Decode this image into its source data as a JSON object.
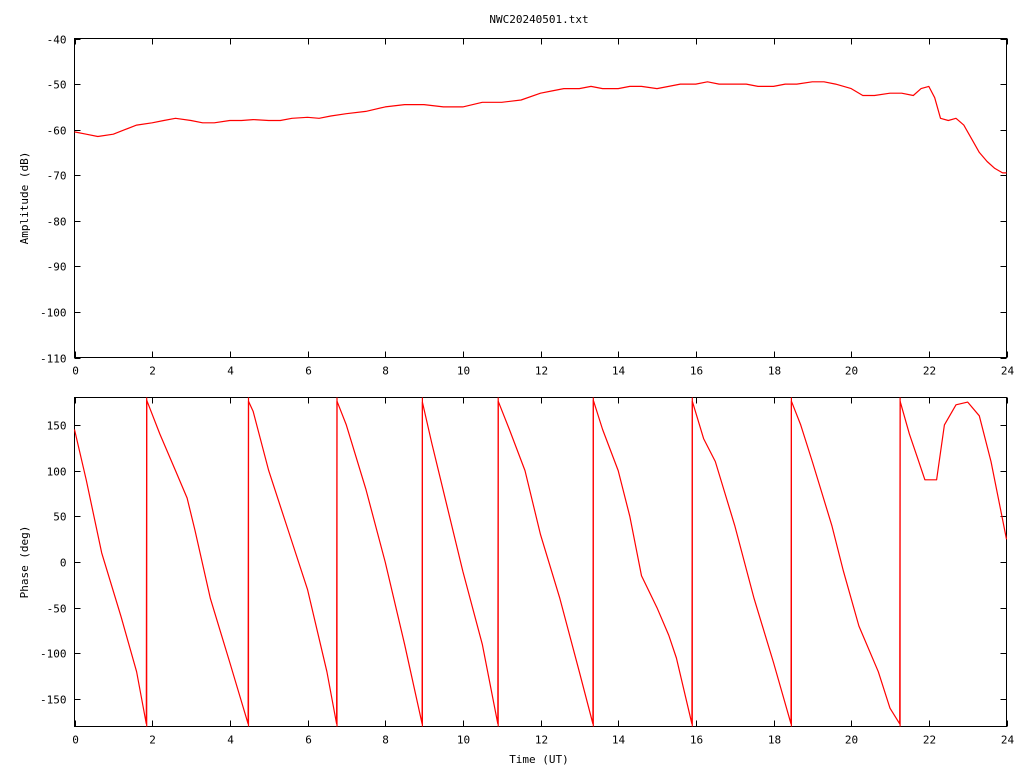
{
  "chart_data": [
    {
      "type": "line",
      "title": "NWC20240501.txt",
      "xlabel": "",
      "ylabel": "Amplitude (dB)",
      "xlim": [
        0,
        24
      ],
      "ylim": [
        -110,
        -40
      ],
      "xticks": [
        "0",
        "2",
        "4",
        "6",
        "8",
        "10",
        "12",
        "14",
        "16",
        "18",
        "20",
        "22",
        "24"
      ],
      "yticks": [
        "-110",
        "-100",
        "-90",
        "-80",
        "-70",
        "-60",
        "-50",
        "-40"
      ],
      "xtick_values": [
        0,
        2,
        4,
        6,
        8,
        10,
        12,
        14,
        16,
        18,
        20,
        22,
        24
      ],
      "ytick_values": [
        -110,
        -100,
        -90,
        -80,
        -70,
        -60,
        -50,
        -40
      ],
      "grid": false,
      "color": "#ff0000",
      "series": [
        {
          "x": [
            0,
            0.3,
            0.6,
            1.0,
            1.3,
            1.6,
            2.0,
            2.3,
            2.6,
            3.0,
            3.3,
            3.6,
            4.0,
            4.3,
            4.6,
            5.0,
            5.3,
            5.6,
            6.0,
            6.3,
            6.6,
            7.0,
            7.5,
            8.0,
            8.5,
            9.0,
            9.5,
            10.0,
            10.5,
            11.0,
            11.5,
            12.0,
            12.3,
            12.6,
            13.0,
            13.3,
            13.6,
            14.0,
            14.3,
            14.6,
            15.0,
            15.3,
            15.6,
            16.0,
            16.3,
            16.6,
            17.0,
            17.3,
            17.6,
            18.0,
            18.3,
            18.6,
            19.0,
            19.3,
            19.6,
            20.0,
            20.3,
            20.6,
            21.0,
            21.3,
            21.6,
            21.8,
            22.0,
            22.15,
            22.3,
            22.5,
            22.7,
            22.9,
            23.1,
            23.3,
            23.5,
            23.7,
            23.9,
            24.0
          ],
          "y": [
            -60.5,
            -61.0,
            -61.5,
            -61.0,
            -60.0,
            -59.0,
            -58.5,
            -58.0,
            -57.5,
            -58.0,
            -58.5,
            -58.5,
            -58.0,
            -58.0,
            -57.8,
            -58.0,
            -58.0,
            -57.5,
            -57.3,
            -57.5,
            -57.0,
            -56.5,
            -56.0,
            -55.0,
            -54.5,
            -54.5,
            -55.0,
            -55.0,
            -54.0,
            -54.0,
            -53.5,
            -52.0,
            -51.5,
            -51.0,
            -51.0,
            -50.5,
            -51.0,
            -51.0,
            -50.5,
            -50.5,
            -51.0,
            -50.5,
            -50.0,
            -50.0,
            -49.5,
            -50.0,
            -50.0,
            -50.0,
            -50.5,
            -50.5,
            -50.0,
            -50.0,
            -49.5,
            -49.5,
            -50.0,
            -51.0,
            -52.5,
            -52.5,
            -52.0,
            -52.0,
            -52.5,
            -51.0,
            -50.5,
            -53.0,
            -57.5,
            -58.0,
            -57.5,
            -59.0,
            -62.0,
            -65.0,
            -67.0,
            -68.5,
            -69.5,
            -69.5
          ]
        }
      ]
    },
    {
      "type": "line",
      "title": "",
      "xlabel": "Time (UT)",
      "ylabel": "Phase (deg)",
      "xlim": [
        0,
        24
      ],
      "ylim": [
        -180,
        180
      ],
      "xticks": [
        "0",
        "2",
        "4",
        "6",
        "8",
        "10",
        "12",
        "14",
        "16",
        "18",
        "20",
        "22",
        "24"
      ],
      "yticks": [
        "-150",
        "-100",
        "-50",
        "0",
        "50",
        "100",
        "150"
      ],
      "xtick_values": [
        0,
        2,
        4,
        6,
        8,
        10,
        12,
        14,
        16,
        18,
        20,
        22,
        24
      ],
      "ytick_values": [
        -150,
        -100,
        -50,
        0,
        50,
        100,
        150
      ],
      "grid": false,
      "color": "#ff0000",
      "series": [
        {
          "x": [
            0,
            0.3,
            0.7,
            1.2,
            1.6,
            1.85,
            1.86,
            2.2,
            2.6,
            2.9,
            3.1,
            3.5,
            4.0,
            4.47,
            4.48,
            4.6,
            5.0,
            5.5,
            6.0,
            6.5,
            6.75,
            6.76,
            7.0,
            7.5,
            8.0,
            8.5,
            8.95,
            8.96,
            9.2,
            9.6,
            10.0,
            10.5,
            10.9,
            10.91,
            11.2,
            11.6,
            12.0,
            12.5,
            13.0,
            13.35,
            13.36,
            13.6,
            14.0,
            14.3,
            14.6,
            15.0,
            15.3,
            15.5,
            15.9,
            15.91,
            16.2,
            16.5,
            17.0,
            17.5,
            18.0,
            18.45,
            18.46,
            18.7,
            19.0,
            19.5,
            19.8,
            20.2,
            20.7,
            21.0,
            21.25,
            21.26,
            21.5,
            21.7,
            21.9,
            22.1,
            22.2,
            22.4,
            22.7,
            23.0,
            23.3,
            23.6,
            24.0
          ],
          "y": [
            145,
            90,
            10,
            -60,
            -120,
            -177,
            177,
            140,
            100,
            70,
            35,
            -40,
            -110,
            -177,
            176,
            165,
            100,
            35,
            -30,
            -120,
            -177,
            176,
            150,
            80,
            0,
            -90,
            -177,
            175,
            130,
            60,
            -10,
            -90,
            -177,
            176,
            145,
            100,
            30,
            -40,
            -120,
            -177,
            177,
            145,
            100,
            50,
            -15,
            -50,
            -80,
            -105,
            -177,
            176,
            135,
            110,
            40,
            -40,
            -110,
            -177,
            176,
            150,
            110,
            40,
            -10,
            -70,
            -120,
            -160,
            -177,
            176,
            140,
            115,
            90,
            90,
            90,
            150,
            172,
            175,
            160,
            110,
            25
          ]
        }
      ]
    }
  ]
}
